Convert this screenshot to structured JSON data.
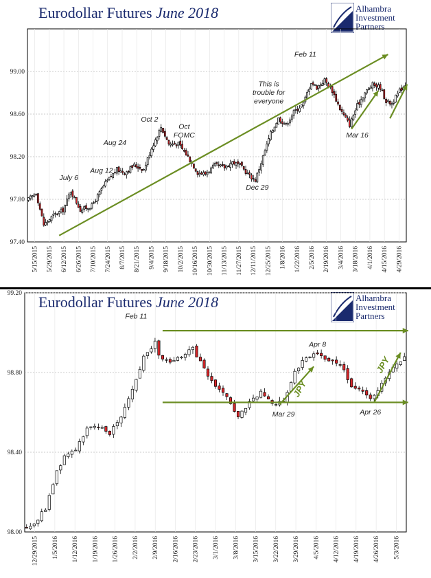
{
  "charts": [
    {
      "title_main": "Eurodollar Futures ",
      "title_italic": "June 2018",
      "brand": [
        "Alhambra",
        "Investment",
        "Partners"
      ]
    },
    {
      "title_main": "Eurodollar Futures ",
      "title_italic": "June 2018",
      "brand": [
        "Alhambra",
        "Investment",
        "Partners"
      ]
    }
  ],
  "colors": {
    "title": "#1a2a6e",
    "up": "#ffffff",
    "down": "#d9262a",
    "trend": "#6b8e23",
    "grid": "#bbbbbb"
  },
  "chart_data": [
    {
      "type": "candlestick",
      "ylim": [
        97.4,
        99.4
      ],
      "yticks": [
        "97.40",
        "97.80",
        "98.20",
        "98.60",
        "99.00"
      ],
      "grid": true,
      "xticks": [
        "5/15/2015",
        "5/29/2015",
        "6/12/2015",
        "6/26/2015",
        "7/10/2015",
        "7/24/2015",
        "8/7/2015",
        "8/21/2015",
        "9/4/2015",
        "9/18/2015",
        "10/2/2015",
        "10/16/2015",
        "10/30/2015",
        "11/13/2015",
        "11/27/2015",
        "12/11/2015",
        "12/25/2015",
        "1/8/2016",
        "1/22/2016",
        "2/5/2016",
        "2/19/2016",
        "3/4/2016",
        "3/18/2016",
        "4/1/2016",
        "4/15/2016",
        "4/29/2016"
      ],
      "anchors": [
        {
          "i": 0,
          "v": 97.8
        },
        {
          "i": 4,
          "v": 97.86
        },
        {
          "i": 8,
          "v": 97.56
        },
        {
          "i": 13,
          "v": 97.65
        },
        {
          "i": 18,
          "v": 97.7
        },
        {
          "i": 22,
          "v": 97.88
        },
        {
          "i": 27,
          "v": 97.7
        },
        {
          "i": 33,
          "v": 97.74
        },
        {
          "i": 40,
          "v": 97.95
        },
        {
          "i": 46,
          "v": 98.08
        },
        {
          "i": 50,
          "v": 98.05
        },
        {
          "i": 55,
          "v": 98.12
        },
        {
          "i": 60,
          "v": 98.08
        },
        {
          "i": 64,
          "v": 98.28
        },
        {
          "i": 69,
          "v": 98.48
        },
        {
          "i": 73,
          "v": 98.32
        },
        {
          "i": 78,
          "v": 98.32
        },
        {
          "i": 83,
          "v": 98.2
        },
        {
          "i": 88,
          "v": 98.05
        },
        {
          "i": 92,
          "v": 98.04
        },
        {
          "i": 97,
          "v": 98.12
        },
        {
          "i": 102,
          "v": 98.1
        },
        {
          "i": 106,
          "v": 98.15
        },
        {
          "i": 110,
          "v": 98.12
        },
        {
          "i": 115,
          "v": 98.02
        },
        {
          "i": 118,
          "v": 97.98
        },
        {
          "i": 122,
          "v": 98.2
        },
        {
          "i": 126,
          "v": 98.42
        },
        {
          "i": 130,
          "v": 98.56
        },
        {
          "i": 134,
          "v": 98.5
        },
        {
          "i": 138,
          "v": 98.62
        },
        {
          "i": 143,
          "v": 98.7
        },
        {
          "i": 147,
          "v": 98.9
        },
        {
          "i": 150,
          "v": 98.85
        },
        {
          "i": 154,
          "v": 98.92
        },
        {
          "i": 158,
          "v": 98.82
        },
        {
          "i": 162,
          "v": 98.65
        },
        {
          "i": 167,
          "v": 98.5
        },
        {
          "i": 171,
          "v": 98.68
        },
        {
          "i": 175,
          "v": 98.8
        },
        {
          "i": 179,
          "v": 98.88
        },
        {
          "i": 183,
          "v": 98.85
        },
        {
          "i": 186,
          "v": 98.72
        },
        {
          "i": 189,
          "v": 98.7
        },
        {
          "i": 193,
          "v": 98.82
        },
        {
          "i": 196,
          "v": 98.88
        }
      ],
      "annotations": [
        {
          "text": "July 6",
          "i": 21,
          "v": 97.98
        },
        {
          "text": "Aug 12",
          "i": 38,
          "v": 98.05
        },
        {
          "text": "Aug 24",
          "i": 45,
          "v": 98.31
        },
        {
          "text": "Oct 2",
          "i": 63,
          "v": 98.53
        },
        {
          "text": "Oct",
          "i": 81,
          "v": 98.46
        },
        {
          "text": "FOMC",
          "i": 81,
          "v": 98.38
        },
        {
          "text": "This is",
          "i": 125,
          "v": 98.86
        },
        {
          "text": "trouble for",
          "i": 125,
          "v": 98.78
        },
        {
          "text": "everyone",
          "i": 125,
          "v": 98.7
        },
        {
          "text": "Dec 29",
          "i": 119,
          "v": 97.89
        },
        {
          "text": "Feb 11",
          "i": 144,
          "v": 99.14
        },
        {
          "text": "Mar 16",
          "i": 171,
          "v": 98.38
        }
      ],
      "trendlines": [
        {
          "i1": 16,
          "v1": 97.46,
          "i2": 187,
          "v2": 99.16
        },
        {
          "i1": 168,
          "v1": 98.46,
          "i2": 182,
          "v2": 98.82
        },
        {
          "i1": 188,
          "v1": 98.56,
          "i2": 197,
          "v2": 98.88
        }
      ]
    },
    {
      "type": "candlestick",
      "ylim": [
        98.0,
        99.2
      ],
      "yticks": [
        "98.00",
        "98.40",
        "98.80",
        "99.20"
      ],
      "grid": true,
      "xticks": [
        "12/29/2015",
        "1/5/2016",
        "1/12/2016",
        "1/19/2016",
        "1/26/2016",
        "2/2/2016",
        "2/9/2016",
        "2/16/2016",
        "2/23/2016",
        "3/1/2016",
        "3/8/2016",
        "3/15/2016",
        "3/22/2016",
        "3/29/2016",
        "4/5/2016",
        "4/12/2016",
        "4/19/2016",
        "4/26/2016",
        "5/3/2016"
      ],
      "anchors": [
        {
          "i": 0,
          "v": 98.03
        },
        {
          "i": 2,
          "v": 98.04
        },
        {
          "i": 5,
          "v": 98.12
        },
        {
          "i": 8,
          "v": 98.3
        },
        {
          "i": 10,
          "v": 98.38
        },
        {
          "i": 13,
          "v": 98.42
        },
        {
          "i": 16,
          "v": 98.52
        },
        {
          "i": 19,
          "v": 98.52
        },
        {
          "i": 22,
          "v": 98.5
        },
        {
          "i": 25,
          "v": 98.58
        },
        {
          "i": 28,
          "v": 98.72
        },
        {
          "i": 31,
          "v": 98.88
        },
        {
          "i": 34,
          "v": 98.95
        },
        {
          "i": 35,
          "v": 98.88
        },
        {
          "i": 37,
          "v": 98.86
        },
        {
          "i": 41,
          "v": 98.87
        },
        {
          "i": 44,
          "v": 98.92
        },
        {
          "i": 47,
          "v": 98.82
        },
        {
          "i": 50,
          "v": 98.72
        },
        {
          "i": 53,
          "v": 98.68
        },
        {
          "i": 56,
          "v": 98.57
        },
        {
          "i": 59,
          "v": 98.65
        },
        {
          "i": 62,
          "v": 98.7
        },
        {
          "i": 65,
          "v": 98.64
        },
        {
          "i": 68,
          "v": 98.66
        },
        {
          "i": 71,
          "v": 98.8
        },
        {
          "i": 74,
          "v": 98.88
        },
        {
          "i": 77,
          "v": 98.9
        },
        {
          "i": 80,
          "v": 98.86
        },
        {
          "i": 83,
          "v": 98.84
        },
        {
          "i": 86,
          "v": 98.74
        },
        {
          "i": 89,
          "v": 98.7
        },
        {
          "i": 91,
          "v": 98.66
        },
        {
          "i": 94,
          "v": 98.75
        },
        {
          "i": 97,
          "v": 98.82
        },
        {
          "i": 100,
          "v": 98.87
        }
      ],
      "annotations": [
        {
          "text": "Feb 11",
          "i": 29,
          "v": 99.07
        },
        {
          "text": "Apr 8",
          "i": 77,
          "v": 98.93
        },
        {
          "text": "Mar 29",
          "i": 68,
          "v": 98.58
        },
        {
          "text": "Apr 26",
          "i": 91,
          "v": 98.59
        }
      ],
      "hlines": [
        {
          "i1": 36,
          "v": 99.01,
          "i2": 101
        },
        {
          "i1": 36,
          "v": 98.65,
          "i2": 101
        }
      ],
      "trendlines": [
        {
          "i1": 67,
          "v1": 98.64,
          "i2": 76,
          "v2": 98.83
        },
        {
          "i1": 92,
          "v1": 98.65,
          "i2": 99,
          "v2": 98.9
        }
      ],
      "jpy": [
        {
          "text": "JPY",
          "i": 73,
          "v": 98.71,
          "rot": -60
        },
        {
          "text": "JPY",
          "i": 95,
          "v": 98.83,
          "rot": -60
        }
      ]
    }
  ]
}
